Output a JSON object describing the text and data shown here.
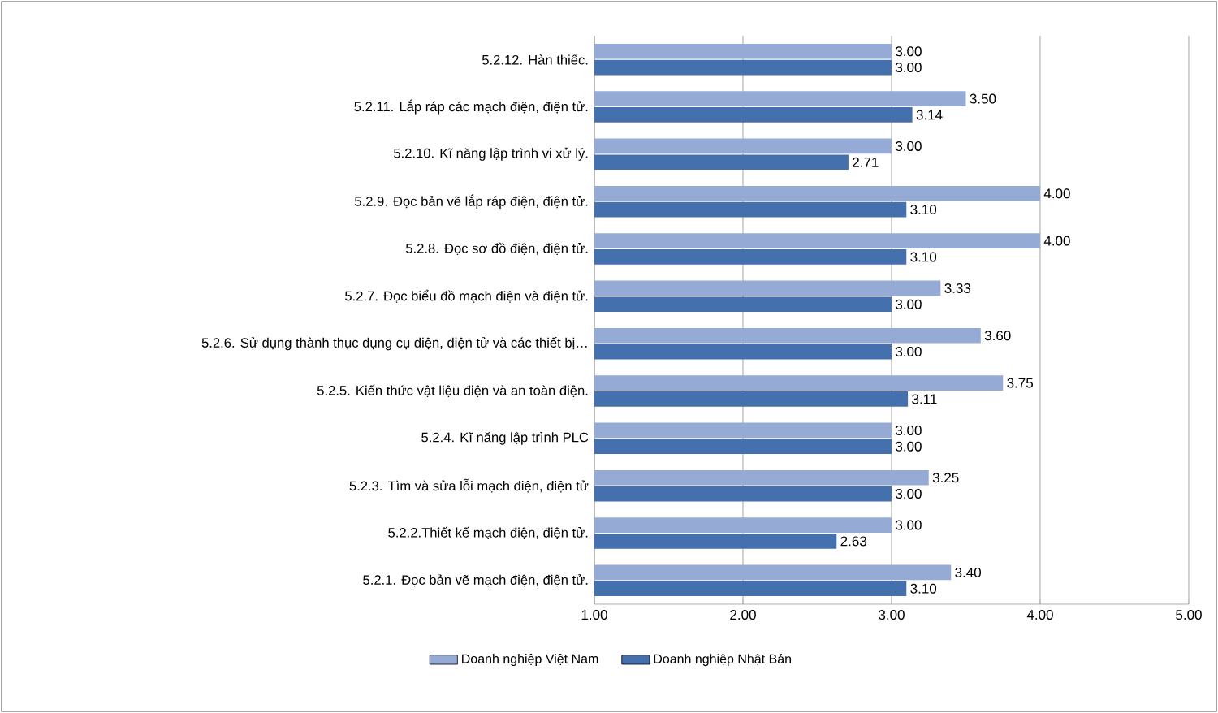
{
  "chart_data": {
    "type": "bar",
    "orientation": "horizontal",
    "categories": [
      "5.2.12. Hàn thiếc.",
      "5.2.11.  Lắp ráp các mạch điện, điện tử.",
      "5.2.10. Kĩ năng lập trình vi xử lý.",
      "5.2.9. Đọc bản vẽ lắp ráp điện, điện tử.",
      "5.2.8. Đọc sơ đồ điện, điện tử.",
      "5.2.7. Đọc biểu đồ mạch điện và điện tử.",
      "5.2.6. Sử dụng thành thục dụng cụ điện, điện tử và các thiết bị…",
      "5.2.5. Kiến thức vật liệu điện và an toàn điện.",
      "5.2.4. Kĩ năng lập trình PLC",
      "5.2.3. Tìm và sửa lỗi mạch điện, điện tử",
      "5.2.2.Thiết kế mạch điện, điện tử.",
      "5.2.1. Đọc bản vẽ mạch điện, điện tử."
    ],
    "series": [
      {
        "name": "Doanh nghiệp Việt Nam",
        "color": "#95abd6",
        "values": [
          3.0,
          3.5,
          3.0,
          4.0,
          4.0,
          3.33,
          3.6,
          3.75,
          3.0,
          3.25,
          3.0,
          3.4
        ],
        "value_labels": [
          "3.00",
          "3.50",
          "3.00",
          "4.00",
          "4.00",
          "3.33",
          "3.60",
          "3.75",
          "3.00",
          "3.25",
          "3.00",
          "3.40"
        ]
      },
      {
        "name": "Doanh nghiệp Nhật Bản",
        "color": "#4470ad",
        "values": [
          3.0,
          3.14,
          2.71,
          3.1,
          3.1,
          3.0,
          3.0,
          3.11,
          3.0,
          3.0,
          2.63,
          3.1
        ],
        "value_labels": [
          "3.00",
          "3.14",
          "2.71",
          "3.10",
          "3.10",
          "3.00",
          "3.00",
          "3.11",
          "3.00",
          "3.00",
          "2.63",
          "3.10"
        ]
      }
    ],
    "xlim": [
      1,
      5
    ],
    "xticks": [
      {
        "value": 1,
        "label": "1.00"
      },
      {
        "value": 2,
        "label": "2.00"
      },
      {
        "value": 3,
        "label": "3.00"
      },
      {
        "value": 4,
        "label": "4.00"
      },
      {
        "value": 5,
        "label": "5.00"
      }
    ],
    "grid": "x",
    "legend": "bottom"
  }
}
